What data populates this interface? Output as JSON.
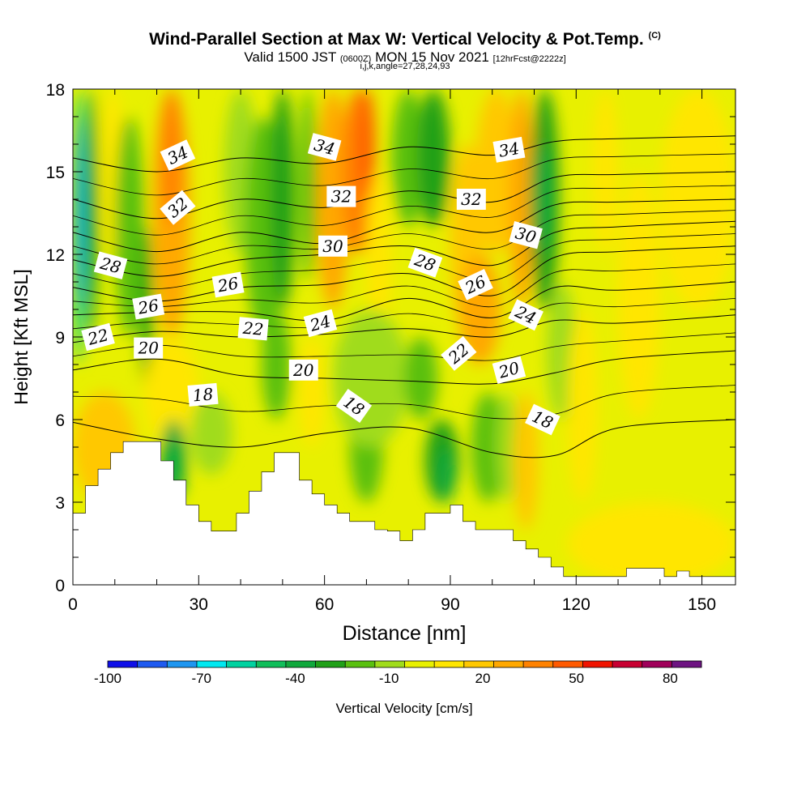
{
  "header": {
    "title": "Wind-Parallel Section at Max W: Vertical Velocity & Pot.Temp.",
    "copyright_mark": "(C)",
    "valid_prefix": "Valid 1500 JST",
    "valid_utc": "(0600Z)",
    "valid_date": "MON 15 Nov 2021",
    "forecast_info": "[12hrFcst@2222z]",
    "section_params": "i,j,k,angle=27,28,24,93"
  },
  "chart_data": {
    "type": "heatmap",
    "xlabel": "Distance [nm]",
    "ylabel": "Height [Kft MSL]",
    "xlim": [
      0,
      158
    ],
    "ylim": [
      0,
      18
    ],
    "x_ticks": [
      0,
      30,
      60,
      90,
      120,
      150
    ],
    "y_ticks": [
      0,
      3,
      6,
      9,
      12,
      15,
      18
    ],
    "grid": false,
    "colorbar": {
      "label": "Vertical Velocity [cm/s]",
      "tick_labels": [
        "-100",
        "-70",
        "-40",
        "-10",
        "20",
        "50",
        "80"
      ],
      "tick_values": [
        -100,
        -70,
        -40,
        -10,
        20,
        50,
        80
      ],
      "range": [
        -100,
        90
      ],
      "step": 10,
      "colors": [
        "#1010e8",
        "#1e5af0",
        "#1e96f0",
        "#00e8f0",
        "#00d2a0",
        "#10be5a",
        "#10a83c",
        "#20a018",
        "#5ac010",
        "#a0dc1a",
        "#e8f000",
        "#ffe600",
        "#ffc800",
        "#ffa800",
        "#ff8200",
        "#ff5a00",
        "#f01400",
        "#c80032",
        "#a0005a",
        "#6e1482"
      ]
    },
    "velocity_field": {
      "background_cm_s": 0,
      "cells": [
        {
          "x": [
            0,
            3
          ],
          "z": [
            8,
            18
          ],
          "w": -60
        },
        {
          "x": [
            1,
            2
          ],
          "z": [
            10,
            17
          ],
          "w": -80
        },
        {
          "x": [
            3,
            6
          ],
          "z": [
            9,
            18
          ],
          "w": -30
        },
        {
          "x": [
            7,
            12
          ],
          "z": [
            12,
            18
          ],
          "w": 10
        },
        {
          "x": [
            10,
            17
          ],
          "z": [
            9,
            17
          ],
          "w": -20
        },
        {
          "x": [
            16,
            19
          ],
          "z": [
            7,
            13
          ],
          "w": -30
        },
        {
          "x": [
            19,
            28
          ],
          "z": [
            9,
            18
          ],
          "w": 30
        },
        {
          "x": [
            21,
            26
          ],
          "z": [
            13,
            18
          ],
          "w": 40
        },
        {
          "x": [
            17,
            30
          ],
          "z": [
            5,
            9
          ],
          "w": 10
        },
        {
          "x": [
            21,
            27
          ],
          "z": [
            3,
            6
          ],
          "w": -40
        },
        {
          "x": [
            28,
            38
          ],
          "z": [
            4,
            7
          ],
          "w": -10
        },
        {
          "x": [
            36,
            44
          ],
          "z": [
            12,
            18
          ],
          "w": -10
        },
        {
          "x": [
            41,
            50
          ],
          "z": [
            9,
            17
          ],
          "w": -20
        },
        {
          "x": [
            47,
            53
          ],
          "z": [
            10,
            18
          ],
          "w": -30
        },
        {
          "x": [
            45,
            52
          ],
          "z": [
            6,
            10
          ],
          "w": -20
        },
        {
          "x": [
            54,
            60
          ],
          "z": [
            5,
            9
          ],
          "w": 10
        },
        {
          "x": [
            54,
            58
          ],
          "z": [
            11,
            18
          ],
          "w": -20
        },
        {
          "x": [
            58,
            66
          ],
          "z": [
            10,
            18
          ],
          "w": 30
        },
        {
          "x": [
            64,
            72
          ],
          "z": [
            12,
            18
          ],
          "w": 40
        },
        {
          "x": [
            68,
            72
          ],
          "z": [
            14,
            18
          ],
          "w": 50
        },
        {
          "x": [
            70,
            76
          ],
          "z": [
            9,
            15
          ],
          "w": 10
        },
        {
          "x": [
            66,
            74
          ],
          "z": [
            3,
            7
          ],
          "w": -20
        },
        {
          "x": [
            62,
            80
          ],
          "z": [
            5,
            10
          ],
          "w": -10
        },
        {
          "x": [
            76,
            84
          ],
          "z": [
            13,
            18
          ],
          "w": -20
        },
        {
          "x": [
            82,
            90
          ],
          "z": [
            13,
            18
          ],
          "w": -30
        },
        {
          "x": [
            79,
            87
          ],
          "z": [
            6,
            9
          ],
          "w": -20
        },
        {
          "x": [
            84,
            92
          ],
          "z": [
            3,
            6
          ],
          "w": -30
        },
        {
          "x": [
            87,
            91
          ],
          "z": [
            3,
            5
          ],
          "w": -40
        },
        {
          "x": [
            90,
            98
          ],
          "z": [
            9,
            16
          ],
          "w": 20
        },
        {
          "x": [
            92,
            102
          ],
          "z": [
            8,
            12
          ],
          "w": 30
        },
        {
          "x": [
            96,
            106
          ],
          "z": [
            12,
            18
          ],
          "w": 20
        },
        {
          "x": [
            95,
            103
          ],
          "z": [
            3,
            7
          ],
          "w": -20
        },
        {
          "x": [
            101,
            106
          ],
          "z": [
            3,
            7
          ],
          "w": -10
        },
        {
          "x": [
            105,
            111
          ],
          "z": [
            2,
            7
          ],
          "w": 20
        },
        {
          "x": [
            104,
            110
          ],
          "z": [
            10,
            18
          ],
          "w": 30
        },
        {
          "x": [
            109,
            116
          ],
          "z": [
            10,
            18
          ],
          "w": -30
        },
        {
          "x": [
            110,
            114
          ],
          "z": [
            12,
            16
          ],
          "w": -40
        },
        {
          "x": [
            113,
            120
          ],
          "z": [
            6,
            11
          ],
          "w": -10
        },
        {
          "x": [
            118,
            125
          ],
          "z": [
            3,
            10
          ],
          "w": 10
        },
        {
          "x": [
            124,
            130
          ],
          "z": [
            12,
            18
          ],
          "w": 10
        },
        {
          "x": [
            130,
            140
          ],
          "z": [
            6,
            15
          ],
          "w": 10
        },
        {
          "x": [
            140,
            158
          ],
          "z": [
            10,
            18
          ],
          "w": 10
        },
        {
          "x": [
            118,
            158
          ],
          "z": [
            0,
            3
          ],
          "w": 10
        },
        {
          "x": [
            0,
            15
          ],
          "z": [
            3,
            7
          ],
          "w": 20
        }
      ]
    },
    "terrain_kft": [
      [
        0,
        2.6
      ],
      [
        3,
        3.6
      ],
      [
        6,
        4.2
      ],
      [
        9,
        4.8
      ],
      [
        12,
        5.2
      ],
      [
        21,
        4.5
      ],
      [
        24,
        3.8
      ],
      [
        27,
        2.9
      ],
      [
        30,
        2.3
      ],
      [
        33,
        1.95
      ],
      [
        39,
        2.6
      ],
      [
        42,
        3.4
      ],
      [
        45,
        4.1
      ],
      [
        48,
        4.8
      ],
      [
        54,
        3.8
      ],
      [
        57,
        3.3
      ],
      [
        60,
        2.9
      ],
      [
        63,
        2.6
      ],
      [
        66,
        2.3
      ],
      [
        69,
        2.3
      ],
      [
        72,
        2.0
      ],
      [
        75,
        1.95
      ],
      [
        78,
        1.6
      ],
      [
        81,
        2.0
      ],
      [
        84,
        2.6
      ],
      [
        90,
        2.9
      ],
      [
        93,
        2.3
      ],
      [
        96,
        2.0
      ],
      [
        102,
        2.0
      ],
      [
        105,
        1.6
      ],
      [
        108,
        1.3
      ],
      [
        111,
        1.0
      ],
      [
        114,
        0.65
      ],
      [
        117,
        0.3
      ],
      [
        132,
        0.6
      ],
      [
        138,
        0.6
      ],
      [
        141,
        0.3
      ],
      [
        144,
        0.5
      ],
      [
        147,
        0.3
      ],
      [
        158,
        0.3
      ]
    ],
    "theta_contours": [
      {
        "level": 18,
        "label": "18",
        "points": [
          [
            0,
            5.9
          ],
          [
            20,
            5.3
          ],
          [
            40,
            5.0
          ],
          [
            60,
            5.5
          ],
          [
            80,
            5.7
          ],
          [
            100,
            4.8
          ],
          [
            115,
            4.7
          ],
          [
            130,
            5.7
          ],
          [
            158,
            6.0
          ]
        ]
      },
      {
        "level": 20,
        "label": "20",
        "points": [
          [
            0,
            7.8
          ],
          [
            20,
            8.2
          ],
          [
            40,
            7.6
          ],
          [
            60,
            7.5
          ],
          [
            80,
            7.4
          ],
          [
            100,
            7.3
          ],
          [
            115,
            7.7
          ],
          [
            130,
            8.2
          ],
          [
            158,
            8.5
          ]
        ]
      },
      {
        "level": 22,
        "label": "22",
        "points": [
          [
            0,
            8.8
          ],
          [
            20,
            9.2
          ],
          [
            40,
            9.0
          ],
          [
            60,
            9.1
          ],
          [
            80,
            9.3
          ],
          [
            100,
            9.0
          ],
          [
            115,
            9.6
          ],
          [
            130,
            9.5
          ],
          [
            158,
            9.8
          ]
        ]
      },
      {
        "level": 24,
        "label": "24",
        "points": [
          [
            0,
            9.8
          ],
          [
            20,
            9.9
          ],
          [
            40,
            9.9
          ],
          [
            60,
            9.6
          ],
          [
            80,
            10.4
          ],
          [
            100,
            9.7
          ],
          [
            115,
            10.8
          ],
          [
            130,
            10.7
          ],
          [
            158,
            11.0
          ]
        ]
      },
      {
        "level": 26,
        "label": "26",
        "points": [
          [
            0,
            10.8
          ],
          [
            20,
            10.3
          ],
          [
            40,
            10.8
          ],
          [
            60,
            10.9
          ],
          [
            80,
            11.3
          ],
          [
            100,
            10.5
          ],
          [
            115,
            11.9
          ],
          [
            130,
            12.1
          ],
          [
            158,
            12.3
          ]
        ]
      },
      {
        "level": 28,
        "label": "28",
        "points": [
          [
            0,
            11.8
          ],
          [
            20,
            11.2
          ],
          [
            40,
            11.8
          ],
          [
            60,
            12.0
          ],
          [
            80,
            12.3
          ],
          [
            100,
            11.6
          ],
          [
            115,
            12.8
          ],
          [
            130,
            13.0
          ],
          [
            158,
            13.2
          ]
        ]
      },
      {
        "level": 30,
        "label": "30",
        "points": [
          [
            0,
            12.8
          ],
          [
            20,
            12.1
          ],
          [
            40,
            12.8
          ],
          [
            60,
            12.4
          ],
          [
            80,
            13.2
          ],
          [
            100,
            12.8
          ],
          [
            115,
            13.8
          ],
          [
            130,
            13.9
          ],
          [
            158,
            14.0
          ]
        ]
      },
      {
        "level": 32,
        "label": "32",
        "points": [
          [
            0,
            14.0
          ],
          [
            20,
            13.3
          ],
          [
            40,
            14.0
          ],
          [
            60,
            13.7
          ],
          [
            80,
            14.3
          ],
          [
            100,
            13.9
          ],
          [
            115,
            14.8
          ],
          [
            130,
            14.9
          ],
          [
            158,
            15.0
          ]
        ]
      },
      {
        "level": 34,
        "label": "34",
        "points": [
          [
            0,
            15.5
          ],
          [
            20,
            15.0
          ],
          [
            40,
            15.5
          ],
          [
            60,
            15.3
          ],
          [
            80,
            15.9
          ],
          [
            100,
            15.6
          ],
          [
            115,
            16.1
          ],
          [
            130,
            16.2
          ],
          [
            158,
            16.3
          ]
        ]
      }
    ],
    "contour_labels": [
      {
        "text": "34",
        "x": 25,
        "z": 15.6,
        "angle": -25
      },
      {
        "text": "34",
        "x": 60,
        "z": 15.9,
        "angle": 15
      },
      {
        "text": "34",
        "x": 104,
        "z": 15.8,
        "angle": -10
      },
      {
        "text": "32",
        "x": 25,
        "z": 13.7,
        "angle": -40
      },
      {
        "text": "32",
        "x": 64,
        "z": 14.1,
        "angle": 0
      },
      {
        "text": "32",
        "x": 95,
        "z": 14.0,
        "angle": 0
      },
      {
        "text": "30",
        "x": 62,
        "z": 12.3,
        "angle": 0
      },
      {
        "text": "30",
        "x": 108,
        "z": 12.7,
        "angle": 15
      },
      {
        "text": "28",
        "x": 9,
        "z": 11.6,
        "angle": 15
      },
      {
        "text": "28",
        "x": 84,
        "z": 11.7,
        "angle": 20
      },
      {
        "text": "26",
        "x": 18,
        "z": 10.1,
        "angle": -10
      },
      {
        "text": "26",
        "x": 37,
        "z": 10.9,
        "angle": -10
      },
      {
        "text": "26",
        "x": 96,
        "z": 10.9,
        "angle": -25
      },
      {
        "text": "24",
        "x": 59,
        "z": 9.5,
        "angle": -15
      },
      {
        "text": "24",
        "x": 108,
        "z": 9.8,
        "angle": 25
      },
      {
        "text": "22",
        "x": 6,
        "z": 9.0,
        "angle": -15
      },
      {
        "text": "22",
        "x": 43,
        "z": 9.3,
        "angle": 5
      },
      {
        "text": "22",
        "x": 92,
        "z": 8.4,
        "angle": -40
      },
      {
        "text": "20",
        "x": 18,
        "z": 8.6,
        "angle": 0
      },
      {
        "text": "20",
        "x": 55,
        "z": 7.8,
        "angle": 0
      },
      {
        "text": "20",
        "x": 104,
        "z": 7.8,
        "angle": -15
      },
      {
        "text": "18",
        "x": 31,
        "z": 6.9,
        "angle": -5
      },
      {
        "text": "18",
        "x": 67,
        "z": 6.5,
        "angle": 35
      },
      {
        "text": "18",
        "x": 112,
        "z": 6.0,
        "angle": 25
      }
    ]
  }
}
